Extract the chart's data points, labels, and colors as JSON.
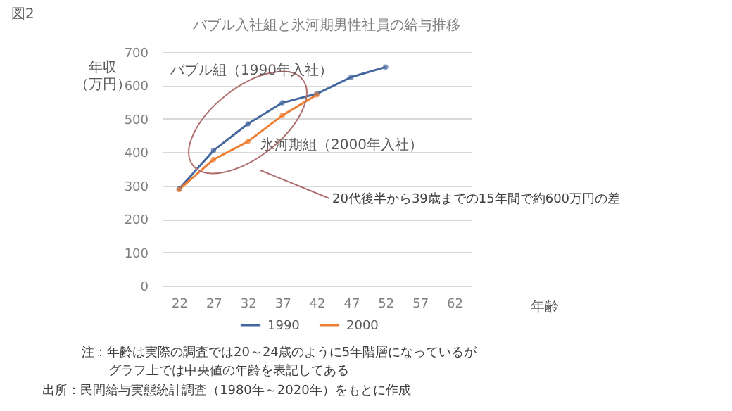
{
  "chart_data": {
    "type": "line",
    "title": "バブル入社組と氷河期男性社員の給与推移",
    "xlabel": "年齢",
    "ylabel": "年収（万円）",
    "categories": [
      "22",
      "27",
      "32",
      "37",
      "42",
      "47",
      "52",
      "57",
      "62"
    ],
    "series": [
      {
        "name": "1990",
        "color": "#44679f",
        "values": [
          290,
          405,
          485,
          548,
          575,
          625,
          655,
          null,
          null
        ]
      },
      {
        "name": "2000",
        "color": "#ed7d31",
        "values": [
          288,
          378,
          432,
          510,
          572,
          null,
          null,
          null,
          null
        ]
      }
    ],
    "ylim": [
      0,
      700
    ],
    "yticks": [
      0,
      100,
      200,
      300,
      400,
      500,
      600,
      700
    ],
    "grid": "y",
    "legend": "bottom",
    "marker": "circle",
    "line_style": "solid",
    "annotations": [
      "図2",
      "バブル組（1990年入社）",
      "氷河期組（2000年入社）",
      "20代後半から39歳までの15年間で約600万円の差",
      "注：年齢は実際の調査では20～24歳のように5年階層になっているが",
      "グラフ上では中央値の年齢を表記してある",
      "出所：民間給与実態統計調査（1980年～2020年）をもとに作成"
    ]
  }
}
